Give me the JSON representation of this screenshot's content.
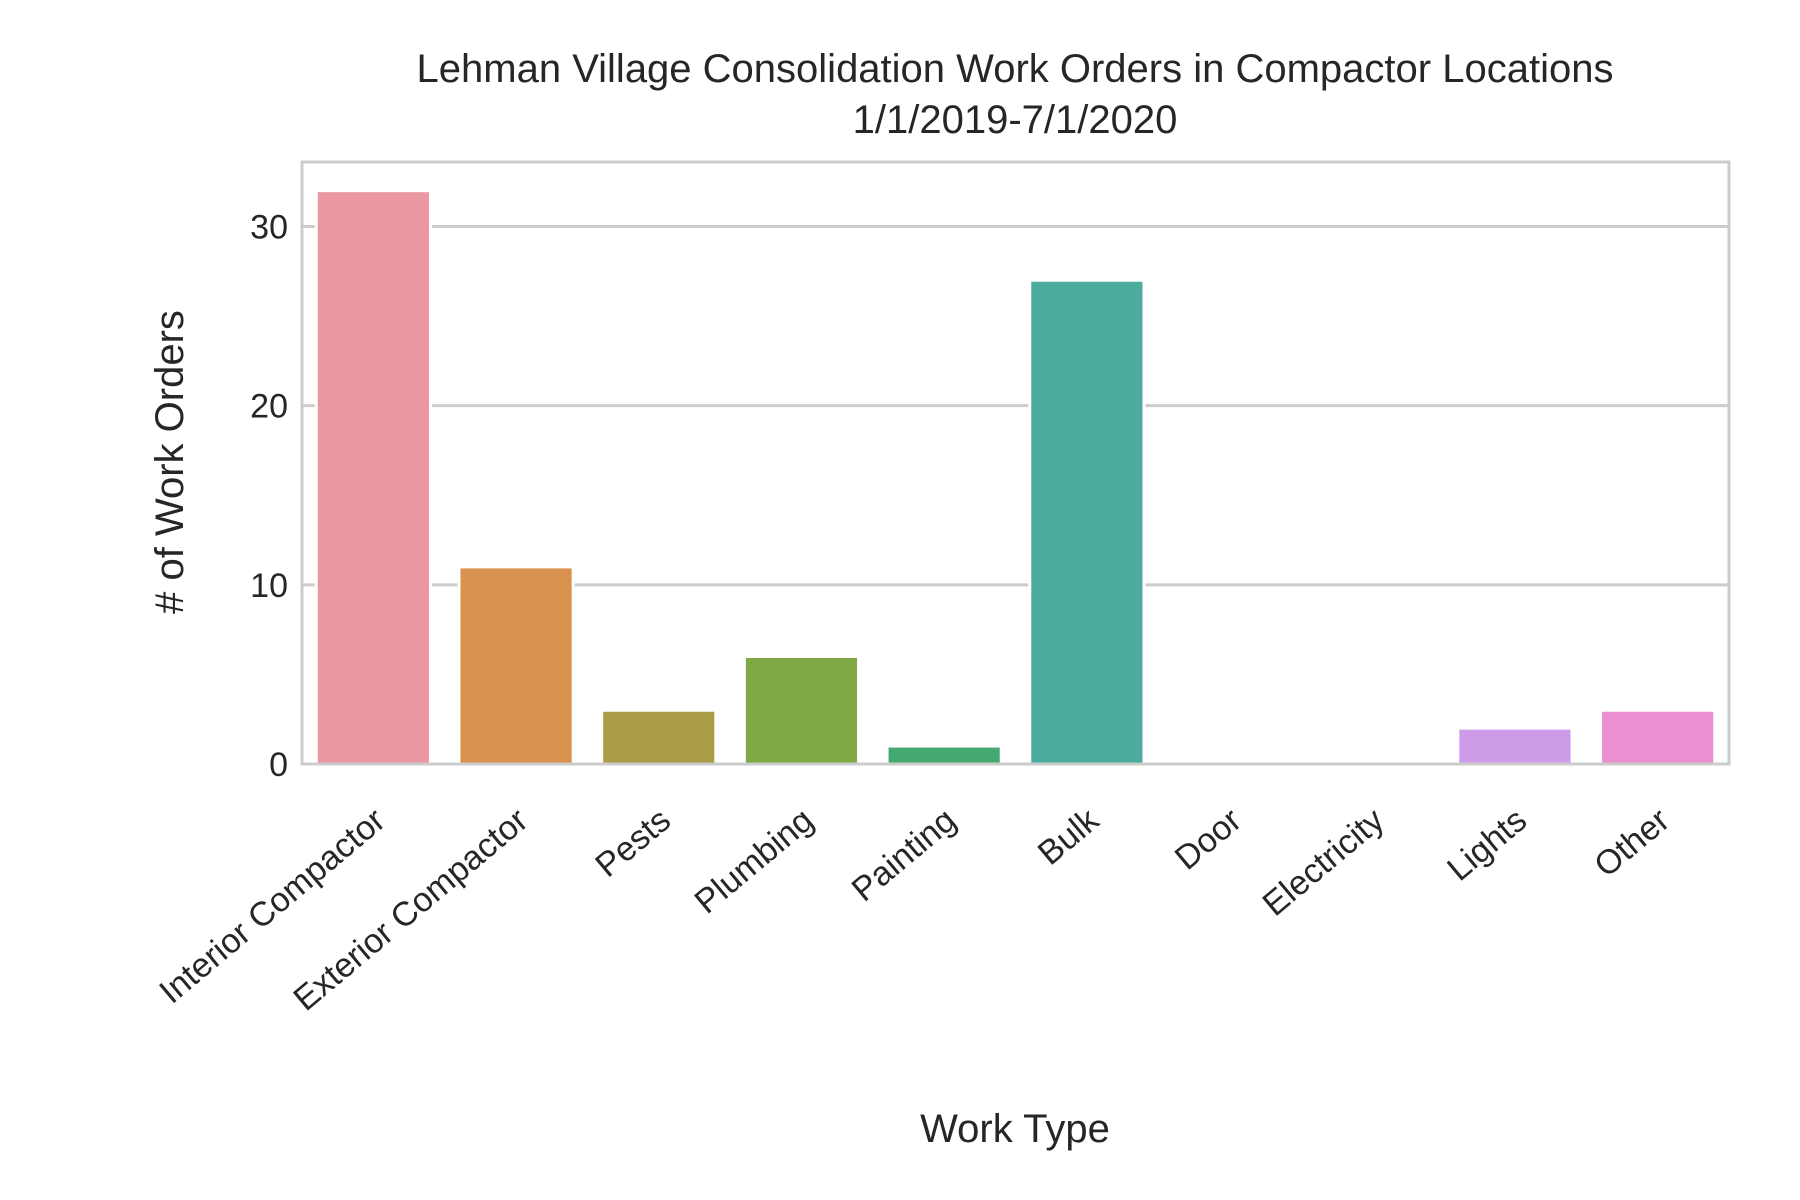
{
  "chart_data": {
    "type": "bar",
    "title": "Lehman Village Consolidation Work Orders in Compactor Locations",
    "subtitle": "1/1/2019-7/1/2020",
    "xlabel": "Work Type",
    "ylabel": "# of Work Orders",
    "categories": [
      "Interior Compactor",
      "Exterior Compactor",
      "Pests",
      "Plumbing",
      "Painting",
      "Bulk",
      "Door",
      "Electricity",
      "Lights",
      "Other"
    ],
    "values": [
      32,
      11,
      3,
      6,
      1,
      27,
      0,
      0,
      2,
      3
    ],
    "colors": [
      "#ea96a3",
      "#d8924e",
      "#ab9d45",
      "#7fa945",
      "#44a871",
      "#4bab9d",
      "#4ea8b8",
      "#5ea6d2",
      "#cd9be8",
      "#ea8fcf"
    ],
    "ylim": [
      0,
      33.6
    ],
    "yticks": [
      0,
      10,
      20,
      30
    ],
    "grid": true,
    "legend": "none"
  }
}
